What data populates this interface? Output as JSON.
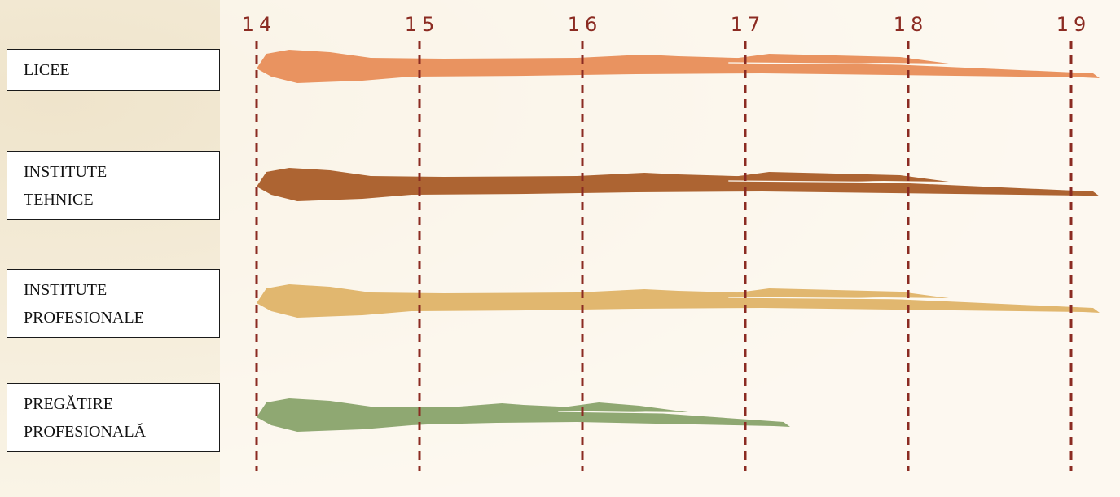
{
  "chart_data": {
    "type": "bar",
    "title": "",
    "xlabel": "",
    "ylabel": "",
    "x_ticks": [
      "14",
      "15",
      "16",
      "17",
      "18",
      "19"
    ],
    "xlim": [
      14,
      19
    ],
    "grid": "vertical dashed",
    "categories": [
      "LICEE",
      "INSTITUTE\nTEHNICE",
      "INSTITUTE\nPROFESIONALE",
      "PREGĂTIRE\nPROFESIONALĂ"
    ],
    "series": [
      {
        "category": "LICEE",
        "start": 14,
        "end": 19,
        "end_upper": 18.1
      },
      {
        "category": "INSTITUTE\nTEHNICE",
        "start": 14,
        "end": 19,
        "end_upper": 18.1
      },
      {
        "category": "INSTITUTE\nPROFESIONALE",
        "start": 14,
        "end": 19,
        "end_upper": 18.1
      },
      {
        "category": "PREGĂTIRE\nPROFESIONALĂ",
        "start": 14,
        "end": 17.1,
        "end_upper": 16.5
      }
    ]
  },
  "colors": {
    "grid": "#8b2b22",
    "tick_text": "#8b2b22",
    "bars": [
      "#e99360",
      "#ad6432",
      "#e1b76f",
      "#8fa872"
    ],
    "background": "#fbf6ea"
  }
}
